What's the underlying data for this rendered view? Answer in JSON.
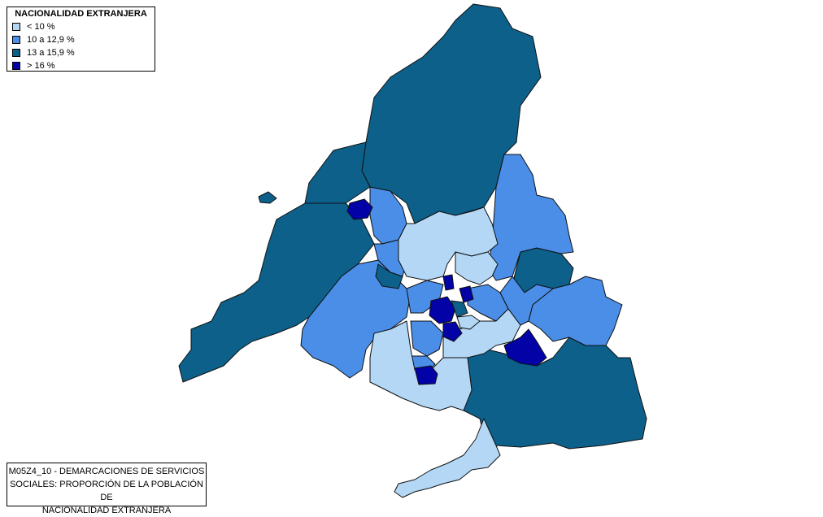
{
  "legend": {
    "title": "NACIONALIDAD EXTRANJERA",
    "items": [
      {
        "label": "< 10 %",
        "color": "#b3d7f5"
      },
      {
        "label": "10 a 12,9 %",
        "color": "#4a8ee8"
      },
      {
        "label": "13 a 15,9 %",
        "color": "#0c6089"
      },
      {
        "label": "> 16 %",
        "color": "#0202a6"
      }
    ]
  },
  "caption": {
    "line1": "M05Z4_10 - DEMARCACIONES DE SERVICIOS",
    "line2": "SOCIALES: PROPORCIÓN DE LA POBLACIÓN DE",
    "line3": "NACIONALIDAD EXTRANJERA"
  }
}
